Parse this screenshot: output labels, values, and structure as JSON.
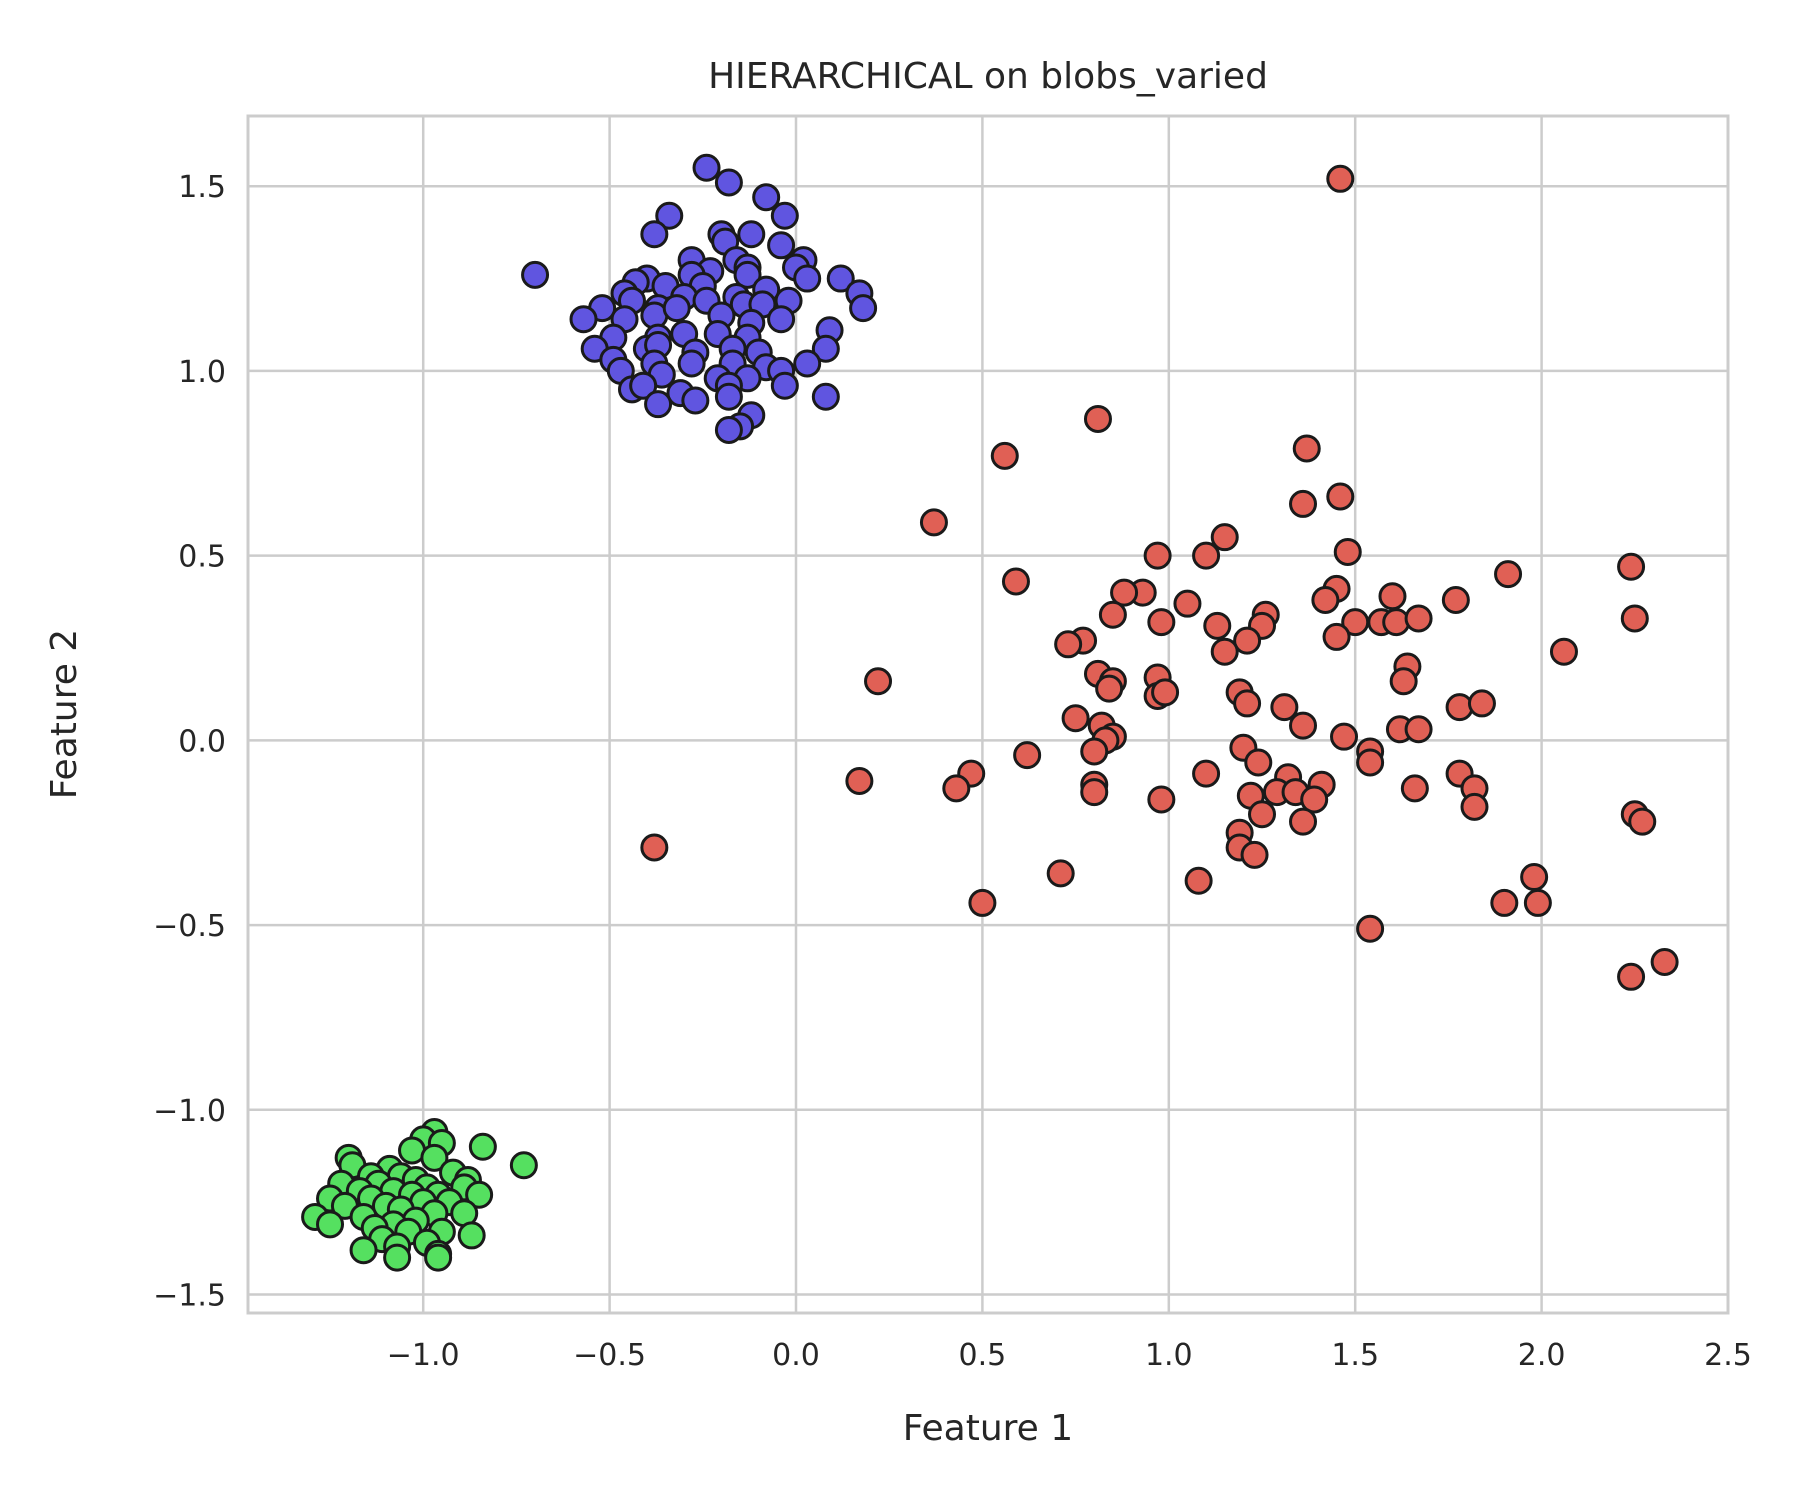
{
  "chart_data": {
    "type": "scatter",
    "title": "HIERARCHICAL on blobs_varied",
    "xlabel": "Feature 1",
    "ylabel": "Feature 2",
    "xlim": [
      -1.47,
      2.5
    ],
    "ylim": [
      -1.55,
      1.69
    ],
    "x_ticks": [
      -1.0,
      -0.5,
      0.0,
      0.5,
      1.0,
      1.5,
      2.0,
      2.5
    ],
    "x_tick_labels": [
      "−1.0",
      "−0.5",
      "0.0",
      "0.5",
      "1.0",
      "1.5",
      "2.0",
      "2.5"
    ],
    "y_ticks": [
      -1.5,
      -1.0,
      -0.5,
      0.0,
      0.5,
      1.0,
      1.5
    ],
    "y_tick_labels": [
      "−1.5",
      "−1.0",
      "−0.5",
      "0.0",
      "0.5",
      "1.0",
      "1.5"
    ],
    "grid": true,
    "legend": "none",
    "marker_edge_color": "#1a1a1a",
    "series": [
      {
        "color": "#6055e0",
        "points": [
          [
            -0.24,
            1.55
          ],
          [
            -0.18,
            1.51
          ],
          [
            -0.08,
            1.47
          ],
          [
            -0.34,
            1.42
          ],
          [
            -0.03,
            1.42
          ],
          [
            -0.38,
            1.37
          ],
          [
            -0.2,
            1.37
          ],
          [
            -0.12,
            1.37
          ],
          [
            -0.19,
            1.35
          ],
          [
            -0.04,
            1.34
          ],
          [
            -0.28,
            1.3
          ],
          [
            -0.16,
            1.3
          ],
          [
            0.02,
            1.3
          ],
          [
            -0.13,
            1.28
          ],
          [
            -0.23,
            1.27
          ],
          [
            -0.7,
            1.26
          ],
          [
            -0.4,
            1.25
          ],
          [
            -0.28,
            1.26
          ],
          [
            0.0,
            1.28
          ],
          [
            -0.13,
            1.26
          ],
          [
            0.03,
            1.25
          ],
          [
            0.12,
            1.25
          ],
          [
            -0.43,
            1.24
          ],
          [
            -0.35,
            1.23
          ],
          [
            -0.25,
            1.23
          ],
          [
            -0.46,
            1.21
          ],
          [
            -0.3,
            1.2
          ],
          [
            -0.16,
            1.2
          ],
          [
            -0.08,
            1.22
          ],
          [
            0.17,
            1.21
          ],
          [
            -0.52,
            1.17
          ],
          [
            -0.44,
            1.19
          ],
          [
            -0.37,
            1.17
          ],
          [
            -0.24,
            1.19
          ],
          [
            -0.14,
            1.18
          ],
          [
            -0.09,
            1.18
          ],
          [
            -0.02,
            1.19
          ],
          [
            0.18,
            1.17
          ],
          [
            -0.57,
            1.14
          ],
          [
            -0.46,
            1.14
          ],
          [
            -0.38,
            1.15
          ],
          [
            -0.32,
            1.17
          ],
          [
            -0.2,
            1.15
          ],
          [
            -0.12,
            1.13
          ],
          [
            -0.04,
            1.14
          ],
          [
            0.09,
            1.11
          ],
          [
            -0.49,
            1.09
          ],
          [
            -0.37,
            1.09
          ],
          [
            -0.3,
            1.1
          ],
          [
            -0.21,
            1.1
          ],
          [
            -0.13,
            1.09
          ],
          [
            -0.54,
            1.06
          ],
          [
            -0.4,
            1.06
          ],
          [
            -0.37,
            1.07
          ],
          [
            -0.27,
            1.05
          ],
          [
            -0.17,
            1.06
          ],
          [
            -0.1,
            1.05
          ],
          [
            0.08,
            1.06
          ],
          [
            -0.49,
            1.03
          ],
          [
            -0.38,
            1.02
          ],
          [
            -0.28,
            1.02
          ],
          [
            -0.17,
            1.02
          ],
          [
            -0.08,
            1.01
          ],
          [
            -0.04,
            1.0
          ],
          [
            0.03,
            1.02
          ],
          [
            -0.47,
            1.0
          ],
          [
            -0.36,
            0.99
          ],
          [
            -0.21,
            0.98
          ],
          [
            -0.13,
            0.98
          ],
          [
            -0.44,
            0.95
          ],
          [
            -0.41,
            0.96
          ],
          [
            -0.31,
            0.94
          ],
          [
            -0.18,
            0.96
          ],
          [
            -0.03,
            0.96
          ],
          [
            -0.37,
            0.91
          ],
          [
            -0.27,
            0.92
          ],
          [
            -0.18,
            0.93
          ],
          [
            0.08,
            0.93
          ],
          [
            -0.12,
            0.88
          ],
          [
            -0.15,
            0.85
          ],
          [
            -0.18,
            0.84
          ]
        ]
      },
      {
        "color": "#e06055",
        "points": [
          [
            1.46,
            1.52
          ],
          [
            0.81,
            0.87
          ],
          [
            0.56,
            0.77
          ],
          [
            1.37,
            0.79
          ],
          [
            1.46,
            0.66
          ],
          [
            1.36,
            0.64
          ],
          [
            0.37,
            0.59
          ],
          [
            1.15,
            0.55
          ],
          [
            1.48,
            0.51
          ],
          [
            0.97,
            0.5
          ],
          [
            1.1,
            0.5
          ],
          [
            2.24,
            0.47
          ],
          [
            1.91,
            0.45
          ],
          [
            0.59,
            0.43
          ],
          [
            0.93,
            0.4
          ],
          [
            0.88,
            0.4
          ],
          [
            1.45,
            0.41
          ],
          [
            1.6,
            0.39
          ],
          [
            1.42,
            0.38
          ],
          [
            1.77,
            0.38
          ],
          [
            1.05,
            0.37
          ],
          [
            0.85,
            0.34
          ],
          [
            1.26,
            0.34
          ],
          [
            0.98,
            0.32
          ],
          [
            1.13,
            0.31
          ],
          [
            1.25,
            0.31
          ],
          [
            1.5,
            0.32
          ],
          [
            1.57,
            0.32
          ],
          [
            1.61,
            0.32
          ],
          [
            1.67,
            0.33
          ],
          [
            2.25,
            0.33
          ],
          [
            0.77,
            0.27
          ],
          [
            0.73,
            0.26
          ],
          [
            1.21,
            0.27
          ],
          [
            1.45,
            0.28
          ],
          [
            1.15,
            0.24
          ],
          [
            2.06,
            0.24
          ],
          [
            0.22,
            0.16
          ],
          [
            0.81,
            0.18
          ],
          [
            0.97,
            0.17
          ],
          [
            0.85,
            0.16
          ],
          [
            1.64,
            0.2
          ],
          [
            0.84,
            0.14
          ],
          [
            0.97,
            0.12
          ],
          [
            0.99,
            0.13
          ],
          [
            1.19,
            0.13
          ],
          [
            1.63,
            0.16
          ],
          [
            1.21,
            0.1
          ],
          [
            1.31,
            0.09
          ],
          [
            1.78,
            0.09
          ],
          [
            1.84,
            0.1
          ],
          [
            0.75,
            0.06
          ],
          [
            0.82,
            0.04
          ],
          [
            1.36,
            0.04
          ],
          [
            1.62,
            0.03
          ],
          [
            1.67,
            0.03
          ],
          [
            0.85,
            0.01
          ],
          [
            0.83,
            0.0
          ],
          [
            1.47,
            0.01
          ],
          [
            0.8,
            -0.03
          ],
          [
            1.2,
            -0.02
          ],
          [
            1.54,
            -0.03
          ],
          [
            0.62,
            -0.04
          ],
          [
            1.24,
            -0.06
          ],
          [
            1.54,
            -0.06
          ],
          [
            0.47,
            -0.09
          ],
          [
            1.1,
            -0.09
          ],
          [
            1.32,
            -0.1
          ],
          [
            1.78,
            -0.09
          ],
          [
            0.17,
            -0.11
          ],
          [
            0.8,
            -0.12
          ],
          [
            1.41,
            -0.12
          ],
          [
            0.43,
            -0.13
          ],
          [
            0.8,
            -0.14
          ],
          [
            1.29,
            -0.14
          ],
          [
            1.34,
            -0.14
          ],
          [
            1.66,
            -0.13
          ],
          [
            1.82,
            -0.13
          ],
          [
            1.22,
            -0.15
          ],
          [
            0.98,
            -0.16
          ],
          [
            1.39,
            -0.16
          ],
          [
            1.82,
            -0.18
          ],
          [
            1.25,
            -0.2
          ],
          [
            2.25,
            -0.2
          ],
          [
            2.27,
            -0.22
          ],
          [
            1.36,
            -0.22
          ],
          [
            1.19,
            -0.25
          ],
          [
            1.19,
            -0.29
          ],
          [
            1.23,
            -0.31
          ],
          [
            -0.38,
            -0.29
          ],
          [
            0.71,
            -0.36
          ],
          [
            1.08,
            -0.38
          ],
          [
            1.98,
            -0.37
          ],
          [
            0.5,
            -0.44
          ],
          [
            1.9,
            -0.44
          ],
          [
            1.99,
            -0.44
          ],
          [
            1.54,
            -0.51
          ],
          [
            2.33,
            -0.6
          ],
          [
            2.24,
            -0.64
          ]
        ]
      },
      {
        "color": "#55e060",
        "points": [
          [
            -1.2,
            -1.13
          ],
          [
            -0.97,
            -1.06
          ],
          [
            -1.0,
            -1.08
          ],
          [
            -0.95,
            -1.09
          ],
          [
            -0.84,
            -1.1
          ],
          [
            -1.03,
            -1.11
          ],
          [
            -0.97,
            -1.13
          ],
          [
            -1.19,
            -1.15
          ],
          [
            -0.73,
            -1.15
          ],
          [
            -1.09,
            -1.16
          ],
          [
            -0.92,
            -1.17
          ],
          [
            -1.14,
            -1.18
          ],
          [
            -1.06,
            -1.18
          ],
          [
            -1.02,
            -1.19
          ],
          [
            -0.88,
            -1.19
          ],
          [
            -1.22,
            -1.2
          ],
          [
            -1.12,
            -1.2
          ],
          [
            -0.99,
            -1.21
          ],
          [
            -0.89,
            -1.21
          ],
          [
            -1.17,
            -1.22
          ],
          [
            -1.08,
            -1.22
          ],
          [
            -1.03,
            -1.23
          ],
          [
            -0.96,
            -1.23
          ],
          [
            -0.85,
            -1.23
          ],
          [
            -1.25,
            -1.24
          ],
          [
            -1.14,
            -1.24
          ],
          [
            -1.0,
            -1.25
          ],
          [
            -0.93,
            -1.25
          ],
          [
            -1.21,
            -1.26
          ],
          [
            -1.1,
            -1.26
          ],
          [
            -1.06,
            -1.27
          ],
          [
            -0.97,
            -1.28
          ],
          [
            -0.89,
            -1.28
          ],
          [
            -1.29,
            -1.29
          ],
          [
            -1.16,
            -1.29
          ],
          [
            -1.02,
            -1.3
          ],
          [
            -1.08,
            -1.31
          ],
          [
            -1.25,
            -1.31
          ],
          [
            -1.13,
            -1.32
          ],
          [
            -1.04,
            -1.33
          ],
          [
            -0.95,
            -1.33
          ],
          [
            -0.87,
            -1.34
          ],
          [
            -1.11,
            -1.35
          ],
          [
            -0.99,
            -1.36
          ],
          [
            -1.07,
            -1.37
          ],
          [
            -1.16,
            -1.38
          ],
          [
            -0.96,
            -1.39
          ],
          [
            -1.07,
            -1.4
          ],
          [
            -0.96,
            -1.4
          ]
        ]
      }
    ]
  }
}
